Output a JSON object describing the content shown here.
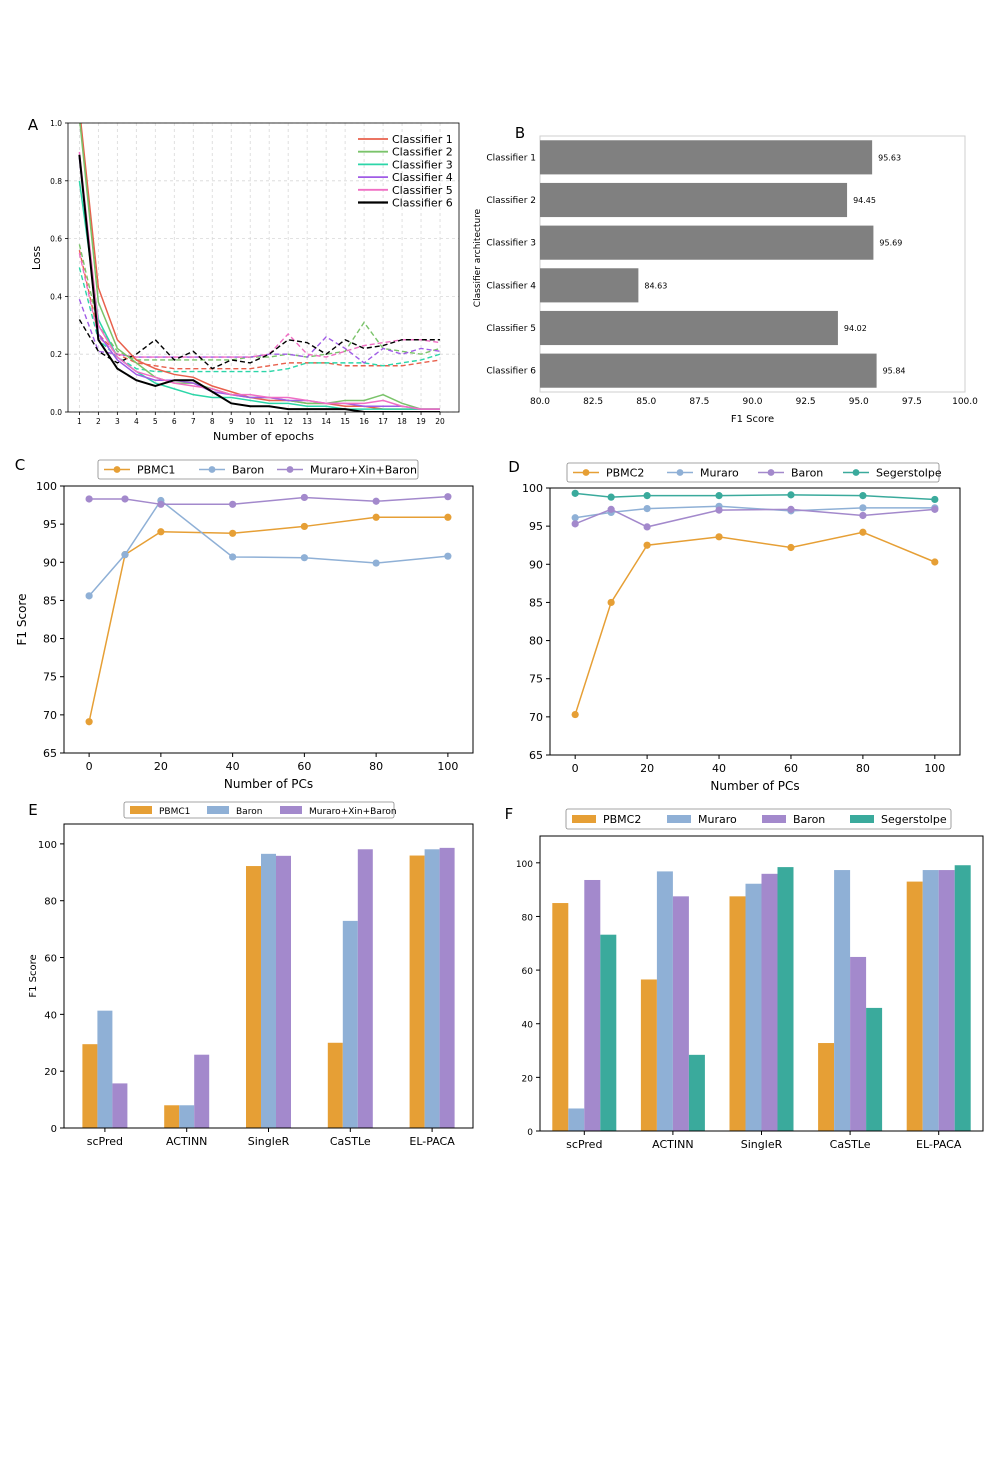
{
  "colors": {
    "orange": "#E69F35",
    "blue": "#8FB0D6",
    "purple": "#A389CC",
    "teal": "#3AAA9C",
    "gray": "#808080",
    "cls1": "#E8604C",
    "cls2": "#7AC36A",
    "cls3": "#2CD6A8",
    "cls4": "#A05CE6",
    "cls5": "#F06EC4",
    "cls6": "#000000"
  },
  "chart_data": [
    {
      "panel": "A",
      "type": "line",
      "title": "",
      "xlabel": "Number of epochs",
      "ylabel": "Loss",
      "x": [
        1,
        2,
        3,
        4,
        5,
        6,
        7,
        8,
        9,
        10,
        11,
        12,
        13,
        14,
        15,
        16,
        17,
        18,
        19,
        20
      ],
      "xlim": [
        0.4,
        21
      ],
      "ylim": [
        0,
        1.0
      ],
      "yticks": [
        0.0,
        0.2,
        0.4,
        0.6,
        0.8,
        1.0
      ],
      "ytick_labels": [
        "0.0",
        "0.2",
        "0.4",
        "0.6",
        "0.8",
        "1.0"
      ],
      "legend_position": "top-right",
      "grid": true,
      "series": [
        {
          "name": "Classifier 1",
          "color": "cls1",
          "train": [
            1.05,
            0.43,
            0.25,
            0.18,
            0.15,
            0.13,
            0.12,
            0.09,
            0.07,
            0.05,
            0.04,
            0.04,
            0.03,
            0.03,
            0.02,
            0.02,
            0.01,
            0.01,
            0.01,
            0.01
          ],
          "val": [
            0.56,
            0.27,
            0.2,
            0.17,
            0.16,
            0.15,
            0.15,
            0.15,
            0.15,
            0.15,
            0.16,
            0.17,
            0.17,
            0.17,
            0.16,
            0.16,
            0.16,
            0.16,
            0.17,
            0.18
          ]
        },
        {
          "name": "Classifier 2",
          "color": "cls2",
          "train": [
            1.02,
            0.38,
            0.22,
            0.17,
            0.12,
            0.1,
            0.1,
            0.08,
            0.06,
            0.05,
            0.05,
            0.04,
            0.03,
            0.03,
            0.04,
            0.04,
            0.06,
            0.03,
            0.01,
            0.01
          ],
          "val": [
            0.58,
            0.3,
            0.21,
            0.18,
            0.18,
            0.18,
            0.18,
            0.18,
            0.18,
            0.19,
            0.19,
            0.2,
            0.19,
            0.2,
            0.21,
            0.31,
            0.22,
            0.21,
            0.2,
            0.22
          ]
        },
        {
          "name": "Classifier 3",
          "color": "cls3",
          "train": [
            0.8,
            0.32,
            0.19,
            0.14,
            0.1,
            0.08,
            0.06,
            0.05,
            0.05,
            0.04,
            0.03,
            0.03,
            0.02,
            0.02,
            0.01,
            0.01,
            0.01,
            0.01,
            0.01,
            0.01
          ],
          "val": [
            0.5,
            0.25,
            0.19,
            0.15,
            0.14,
            0.14,
            0.14,
            0.14,
            0.14,
            0.14,
            0.14,
            0.15,
            0.17,
            0.17,
            0.17,
            0.17,
            0.16,
            0.17,
            0.18,
            0.2
          ]
        },
        {
          "name": "Classifier 4",
          "color": "cls4",
          "train": [
            0.88,
            0.27,
            0.18,
            0.13,
            0.11,
            0.11,
            0.1,
            0.07,
            0.06,
            0.05,
            0.05,
            0.04,
            0.04,
            0.03,
            0.03,
            0.02,
            0.02,
            0.02,
            0.01,
            0.01
          ],
          "val": [
            0.39,
            0.21,
            0.2,
            0.19,
            0.19,
            0.19,
            0.19,
            0.19,
            0.19,
            0.19,
            0.2,
            0.2,
            0.19,
            0.26,
            0.22,
            0.17,
            0.22,
            0.2,
            0.22,
            0.21
          ]
        },
        {
          "name": "Classifier 5",
          "color": "cls5",
          "train": [
            0.9,
            0.3,
            0.19,
            0.14,
            0.12,
            0.1,
            0.09,
            0.08,
            0.06,
            0.06,
            0.05,
            0.05,
            0.04,
            0.03,
            0.03,
            0.03,
            0.04,
            0.02,
            0.01,
            0.01
          ],
          "val": [
            0.55,
            0.26,
            0.2,
            0.19,
            0.19,
            0.19,
            0.19,
            0.19,
            0.19,
            0.19,
            0.2,
            0.27,
            0.2,
            0.19,
            0.21,
            0.23,
            0.24,
            0.25,
            0.25,
            0.24
          ]
        },
        {
          "name": "Classifier 6",
          "color": "cls6",
          "train": [
            0.89,
            0.25,
            0.15,
            0.11,
            0.09,
            0.11,
            0.11,
            0.07,
            0.03,
            0.02,
            0.02,
            0.01,
            0.01,
            0.01,
            0.01,
            0.0,
            0.0,
            0.0,
            0.0,
            0.0
          ],
          "val": [
            0.32,
            0.21,
            0.17,
            0.2,
            0.25,
            0.18,
            0.21,
            0.15,
            0.18,
            0.17,
            0.2,
            0.25,
            0.24,
            0.2,
            0.25,
            0.22,
            0.23,
            0.25,
            0.25,
            0.25
          ]
        }
      ]
    },
    {
      "panel": "B",
      "type": "bar",
      "orientation": "horizontal",
      "xlabel": "F1 Score",
      "ylabel": "Classifier architecture",
      "categories": [
        "Classifier 1",
        "Classifier 2",
        "Classifier 3",
        "Classifier 4",
        "Classifier 5",
        "Classifier 6"
      ],
      "values": [
        95.63,
        94.45,
        95.69,
        84.63,
        94.02,
        95.84
      ],
      "value_labels": [
        "95.63",
        "94.45",
        "95.69",
        "84.63",
        "94.02",
        "95.84"
      ],
      "xlim": [
        80.0,
        100.0
      ],
      "xticks": [
        80.0,
        82.5,
        85.0,
        87.5,
        90.0,
        92.5,
        95.0,
        97.5,
        100.0
      ],
      "xtick_labels": [
        "80.0",
        "82.5",
        "85.0",
        "87.5",
        "90.0",
        "92.5",
        "95.0",
        "97.5",
        "100.0"
      ],
      "color": "gray"
    },
    {
      "panel": "C",
      "type": "line",
      "xlabel": "Number of PCs",
      "ylabel": "F1 Score",
      "x": [
        0,
        10,
        20,
        40,
        60,
        80,
        100
      ],
      "xticks": [
        0,
        20,
        40,
        60,
        80,
        100
      ],
      "xlim": [
        -7,
        107
      ],
      "ylim": [
        65,
        100
      ],
      "yticks": [
        65,
        70,
        75,
        80,
        85,
        90,
        95,
        100
      ],
      "legend_position": "top",
      "series": [
        {
          "name": "PBMC1",
          "color": "orange",
          "values": [
            69.1,
            91.0,
            94.0,
            93.8,
            94.7,
            95.9,
            95.9
          ]
        },
        {
          "name": "Baron",
          "color": "blue",
          "values": [
            85.6,
            91.0,
            98.1,
            90.7,
            90.6,
            89.9,
            90.8
          ]
        },
        {
          "name": "Muraro+Xin+Baron",
          "color": "purple",
          "values": [
            98.3,
            98.3,
            97.6,
            97.6,
            98.5,
            98.0,
            98.6
          ]
        }
      ]
    },
    {
      "panel": "D",
      "type": "line",
      "xlabel": "Number of PCs",
      "ylabel": "",
      "x": [
        0,
        10,
        20,
        40,
        60,
        80,
        100
      ],
      "xticks": [
        0,
        20,
        40,
        60,
        80,
        100
      ],
      "xlim": [
        -7,
        107
      ],
      "ylim": [
        65,
        100
      ],
      "yticks": [
        65,
        70,
        75,
        80,
        85,
        90,
        95,
        100
      ],
      "legend_position": "top",
      "series": [
        {
          "name": "PBMC2",
          "color": "orange",
          "values": [
            70.3,
            85.0,
            92.5,
            93.6,
            92.2,
            94.2,
            90.3
          ]
        },
        {
          "name": "Muraro",
          "color": "blue",
          "values": [
            96.1,
            96.8,
            97.3,
            97.6,
            97.0,
            97.4,
            97.4
          ]
        },
        {
          "name": "Baron",
          "color": "purple",
          "values": [
            95.3,
            97.2,
            94.9,
            97.1,
            97.2,
            96.4,
            97.2
          ]
        },
        {
          "name": "Segerstolpe",
          "color": "teal",
          "values": [
            99.3,
            98.8,
            99.0,
            99.0,
            99.1,
            99.0,
            98.5
          ]
        }
      ]
    },
    {
      "panel": "E",
      "type": "bar",
      "xlabel": "",
      "ylabel": "F1 Score",
      "categories": [
        "scPred",
        "ACTINN",
        "SingleR",
        "CaSTLe",
        "EL-PACA"
      ],
      "ylim": [
        0,
        107
      ],
      "yticks": [
        0,
        20,
        40,
        60,
        80,
        100
      ],
      "legend_position": "top",
      "series": [
        {
          "name": "PBMC1",
          "color": "orange",
          "values": [
            29.5,
            8.0,
            92.2,
            30.0,
            95.9
          ]
        },
        {
          "name": "Baron",
          "color": "blue",
          "values": [
            41.3,
            8.0,
            96.5,
            72.9,
            98.1
          ]
        },
        {
          "name": "Muraro+Xin+Baron",
          "color": "purple",
          "values": [
            15.7,
            25.8,
            95.8,
            98.1,
            98.6
          ]
        }
      ]
    },
    {
      "panel": "F",
      "type": "bar",
      "xlabel": "",
      "ylabel": "",
      "categories": [
        "scPred",
        "ACTINN",
        "SingleR",
        "CaSTLe",
        "EL-PACA"
      ],
      "ylim": [
        0,
        110
      ],
      "yticks": [
        0,
        20,
        40,
        60,
        80,
        100
      ],
      "legend_position": "top",
      "series": [
        {
          "name": "PBMC2",
          "color": "orange",
          "values": [
            85.0,
            56.5,
            87.5,
            32.8,
            93.0
          ]
        },
        {
          "name": "Muraro",
          "color": "blue",
          "values": [
            8.4,
            96.8,
            92.2,
            97.3,
            97.3
          ]
        },
        {
          "name": "Baron",
          "color": "purple",
          "values": [
            93.6,
            87.5,
            95.9,
            64.9,
            97.3
          ]
        },
        {
          "name": "Segerstolpe",
          "color": "teal",
          "values": [
            73.2,
            28.4,
            98.4,
            45.9,
            99.1
          ]
        }
      ]
    }
  ]
}
